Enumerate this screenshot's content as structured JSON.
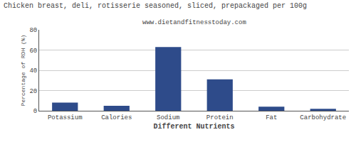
{
  "chart_data": {
    "type": "bar",
    "title": "Chicken breast, deli, rotisserie seasoned, sliced, prepackaged per 100g",
    "subtitle": "www.dietandfitnesstoday.com",
    "xlabel": "Different Nutrients",
    "ylabel": "Percentage of RDH (%)",
    "categories": [
      "Potassium",
      "Calories",
      "Sodium",
      "Protein",
      "Fat",
      "Carbohydrate"
    ],
    "values": [
      8,
      5,
      63,
      31,
      4,
      2
    ],
    "color": "#2e4b8a",
    "ylim": [
      0,
      80
    ],
    "yticks": [
      0,
      20,
      40,
      60,
      80
    ],
    "grid": true
  }
}
